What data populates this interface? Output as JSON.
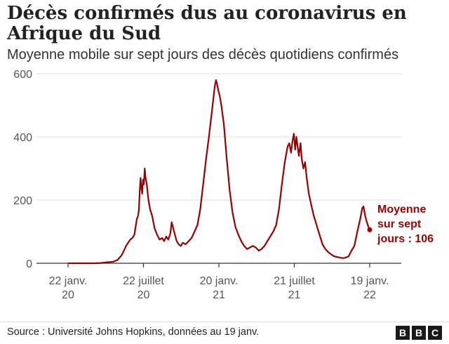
{
  "header": {
    "title": "Décès confirmés dus au coronavirus en Afrique du Sud",
    "subtitle": "Moyenne mobile sur sept jours des décès quotidiens confirmés"
  },
  "footer": {
    "source": "Source : Université Johns Hopkins, données au 19 janv.",
    "logo_letters": [
      "B",
      "B",
      "C"
    ]
  },
  "chart_data": {
    "type": "line",
    "title": "Décès confirmés dus au coronavirus en Afrique du Sud",
    "subtitle": "Moyenne mobile sur sept jours des décès quotidiens confirmés",
    "xlabel": "",
    "ylabel": "",
    "x_ticks": [
      {
        "date": "2020-01-22",
        "label": [
          "22 janv.",
          "20"
        ]
      },
      {
        "date": "2020-07-22",
        "label": [
          "22 juillet",
          "20"
        ]
      },
      {
        "date": "2021-01-20",
        "label": [
          "20 janv.",
          "21"
        ]
      },
      {
        "date": "2021-07-21",
        "label": [
          "21 juillet",
          "21"
        ]
      },
      {
        "date": "2022-01-19",
        "label": [
          "19 janv.",
          "22"
        ]
      }
    ],
    "y_ticks": [
      0,
      200,
      400,
      600
    ],
    "ylim": [
      0,
      600
    ],
    "xlim": [
      "2020-01-22",
      "2022-01-19"
    ],
    "line_color": "#990000",
    "grid": true,
    "annotation": {
      "lines": [
        "Moyenne",
        "sur sept",
        "jours : 106"
      ],
      "date": "2022-01-19",
      "value": 106
    },
    "series": [
      {
        "points": [
          [
            "2020-01-22",
            0
          ],
          [
            "2020-03-01",
            0
          ],
          [
            "2020-03-25",
            0
          ],
          [
            "2020-04-10",
            1
          ],
          [
            "2020-04-25",
            3
          ],
          [
            "2020-05-10",
            5
          ],
          [
            "2020-05-20",
            10
          ],
          [
            "2020-05-30",
            25
          ],
          [
            "2020-06-05",
            40
          ],
          [
            "2020-06-10",
            55
          ],
          [
            "2020-06-15",
            65
          ],
          [
            "2020-06-20",
            75
          ],
          [
            "2020-06-25",
            80
          ],
          [
            "2020-06-30",
            90
          ],
          [
            "2020-07-03",
            115
          ],
          [
            "2020-07-06",
            140
          ],
          [
            "2020-07-09",
            150
          ],
          [
            "2020-07-11",
            170
          ],
          [
            "2020-07-13",
            230
          ],
          [
            "2020-07-15",
            270
          ],
          [
            "2020-07-17",
            240
          ],
          [
            "2020-07-19",
            220
          ],
          [
            "2020-07-21",
            265
          ],
          [
            "2020-07-23",
            250
          ],
          [
            "2020-07-25",
            300
          ],
          [
            "2020-07-27",
            270
          ],
          [
            "2020-07-30",
            250
          ],
          [
            "2020-08-03",
            200
          ],
          [
            "2020-08-07",
            170
          ],
          [
            "2020-08-12",
            150
          ],
          [
            "2020-08-18",
            110
          ],
          [
            "2020-08-24",
            90
          ],
          [
            "2020-08-30",
            75
          ],
          [
            "2020-09-05",
            80
          ],
          [
            "2020-09-10",
            70
          ],
          [
            "2020-09-15",
            85
          ],
          [
            "2020-09-20",
            75
          ],
          [
            "2020-09-25",
            95
          ],
          [
            "2020-09-28",
            130
          ],
          [
            "2020-10-02",
            110
          ],
          [
            "2020-10-06",
            90
          ],
          [
            "2020-10-10",
            70
          ],
          [
            "2020-10-15",
            60
          ],
          [
            "2020-10-20",
            55
          ],
          [
            "2020-10-25",
            65
          ],
          [
            "2020-11-01",
            60
          ],
          [
            "2020-11-08",
            70
          ],
          [
            "2020-11-15",
            80
          ],
          [
            "2020-11-22",
            100
          ],
          [
            "2020-11-29",
            120
          ],
          [
            "2020-12-06",
            170
          ],
          [
            "2020-12-13",
            250
          ],
          [
            "2020-12-20",
            330
          ],
          [
            "2020-12-27",
            400
          ],
          [
            "2021-01-03",
            480
          ],
          [
            "2021-01-10",
            560
          ],
          [
            "2021-01-13",
            580
          ],
          [
            "2021-01-16",
            565
          ],
          [
            "2021-01-19",
            545
          ],
          [
            "2021-01-22",
            530
          ],
          [
            "2021-01-26",
            500
          ],
          [
            "2021-02-01",
            440
          ],
          [
            "2021-02-08",
            330
          ],
          [
            "2021-02-15",
            230
          ],
          [
            "2021-02-22",
            160
          ],
          [
            "2021-03-01",
            115
          ],
          [
            "2021-03-08",
            90
          ],
          [
            "2021-03-15",
            70
          ],
          [
            "2021-03-22",
            55
          ],
          [
            "2021-03-29",
            45
          ],
          [
            "2021-04-05",
            50
          ],
          [
            "2021-04-12",
            55
          ],
          [
            "2021-04-19",
            50
          ],
          [
            "2021-04-26",
            40
          ],
          [
            "2021-05-03",
            45
          ],
          [
            "2021-05-10",
            55
          ],
          [
            "2021-05-17",
            70
          ],
          [
            "2021-05-24",
            85
          ],
          [
            "2021-05-31",
            100
          ],
          [
            "2021-06-07",
            120
          ],
          [
            "2021-06-14",
            170
          ],
          [
            "2021-06-21",
            250
          ],
          [
            "2021-06-28",
            320
          ],
          [
            "2021-07-05",
            370
          ],
          [
            "2021-07-09",
            380
          ],
          [
            "2021-07-13",
            350
          ],
          [
            "2021-07-17",
            390
          ],
          [
            "2021-07-20",
            410
          ],
          [
            "2021-07-23",
            360
          ],
          [
            "2021-07-26",
            400
          ],
          [
            "2021-07-29",
            370
          ],
          [
            "2021-08-01",
            340
          ],
          [
            "2021-08-05",
            380
          ],
          [
            "2021-08-08",
            330
          ],
          [
            "2021-08-12",
            300
          ],
          [
            "2021-08-16",
            320
          ],
          [
            "2021-08-20",
            270
          ],
          [
            "2021-08-25",
            220
          ],
          [
            "2021-08-30",
            190
          ],
          [
            "2021-09-06",
            150
          ],
          [
            "2021-09-13",
            120
          ],
          [
            "2021-09-20",
            90
          ],
          [
            "2021-09-27",
            60
          ],
          [
            "2021-10-04",
            45
          ],
          [
            "2021-10-11",
            35
          ],
          [
            "2021-10-18",
            28
          ],
          [
            "2021-10-25",
            22
          ],
          [
            "2021-11-01",
            20
          ],
          [
            "2021-11-08",
            18
          ],
          [
            "2021-11-15",
            16
          ],
          [
            "2021-11-22",
            18
          ],
          [
            "2021-11-29",
            22
          ],
          [
            "2021-12-06",
            40
          ],
          [
            "2021-12-13",
            55
          ],
          [
            "2021-12-20",
            100
          ],
          [
            "2021-12-27",
            140
          ],
          [
            "2022-01-01",
            175
          ],
          [
            "2022-01-04",
            180
          ],
          [
            "2022-01-08",
            150
          ],
          [
            "2022-01-12",
            130
          ],
          [
            "2022-01-16",
            115
          ],
          [
            "2022-01-19",
            106
          ]
        ]
      }
    ]
  }
}
